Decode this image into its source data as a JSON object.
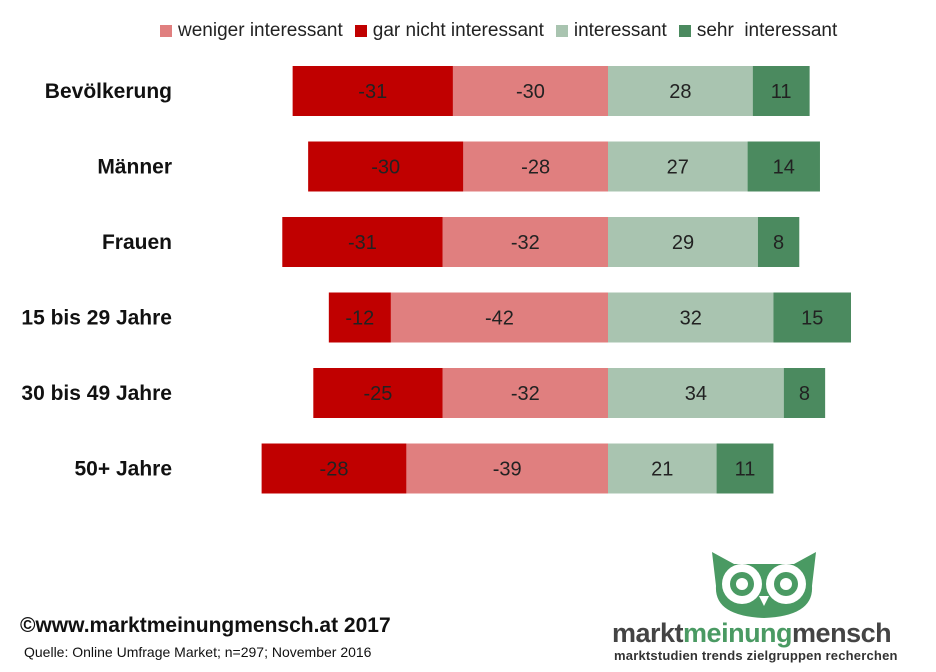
{
  "chart_data": {
    "type": "bar",
    "orientation": "horizontal",
    "stacked": "diverging",
    "categories": [
      "Bevölkerung",
      "Männer",
      "Frauen",
      "15 bis 29 Jahre",
      "30 bis 49 Jahre",
      "50+ Jahre"
    ],
    "series": [
      {
        "name": "gar nicht interessant",
        "color": "#c00000",
        "values": [
          -31,
          -30,
          -31,
          -12,
          -25,
          -28
        ]
      },
      {
        "name": "weniger interessant",
        "color": "#e07f7f",
        "values": [
          -30,
          -28,
          -32,
          -42,
          -32,
          -39
        ]
      },
      {
        "name": "interessant",
        "color": "#a9c4b0",
        "values": [
          28,
          27,
          29,
          32,
          34,
          21
        ]
      },
      {
        "name": "sehr  interessant",
        "color": "#4b8a5f",
        "values": [
          11,
          14,
          8,
          15,
          8,
          11
        ]
      }
    ],
    "legend_order": [
      "weniger interessant",
      "gar nicht interessant",
      "interessant",
      "sehr  interessant"
    ],
    "legend_position": "top",
    "grid": false
  },
  "footer": {
    "copyright": "©www.marktmeinungmensch.at 2017",
    "source": "Quelle: Online Umfrage Market; n=297; November 2016"
  },
  "logo": {
    "word1": "markt",
    "word2": "meinung",
    "word3": "mensch",
    "tagline": "marktstudien trends zielgruppen recherchen",
    "color": "#4a9a63"
  }
}
